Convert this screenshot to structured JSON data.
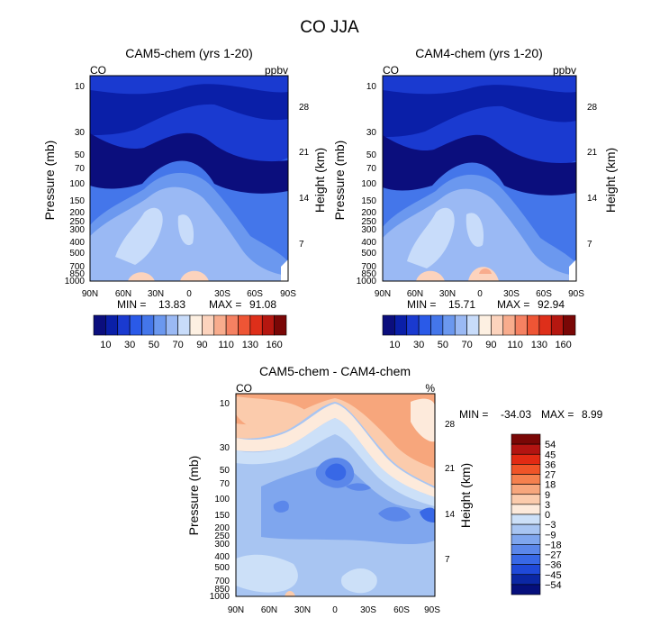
{
  "figure_title": "CO JJA",
  "chart_data": [
    {
      "type": "contour",
      "title": "CAM5-chem (yrs 1-20)",
      "variable": "CO",
      "units": "ppbv",
      "xlabel": "",
      "ylabel": "Pressure (mb)",
      "ylabel_right": "Height (km)",
      "x_ticks": [
        "90N",
        "60N",
        "30N",
        "0",
        "30S",
        "60S",
        "90S"
      ],
      "y_ticks": [
        "10",
        "30",
        "50",
        "70",
        "100",
        "150",
        "200",
        "250",
        "300",
        "400",
        "500",
        "700",
        "850",
        "1000"
      ],
      "y_ticks_right": [
        "28",
        "21",
        "14",
        "7"
      ],
      "min_label": "MIN =",
      "min_value": "13.83",
      "max_label": "MAX =",
      "max_value": "91.08",
      "colorbar_levels": [
        10,
        20,
        30,
        40,
        50,
        60,
        70,
        80,
        90,
        100,
        110,
        120,
        130,
        140,
        150,
        160
      ],
      "colorbar_labels": [
        "10",
        "30",
        "50",
        "70",
        "90",
        "110",
        "130",
        "160"
      ]
    },
    {
      "type": "contour",
      "title": "CAM4-chem (yrs 1-20)",
      "variable": "CO",
      "units": "ppbv",
      "xlabel": "",
      "ylabel": "Pressure (mb)",
      "ylabel_right": "Height (km)",
      "x_ticks": [
        "90N",
        "60N",
        "30N",
        "0",
        "30S",
        "60S",
        "90S"
      ],
      "y_ticks": [
        "10",
        "30",
        "50",
        "70",
        "100",
        "150",
        "200",
        "250",
        "300",
        "400",
        "500",
        "700",
        "850",
        "1000"
      ],
      "y_ticks_right": [
        "28",
        "21",
        "14",
        "7"
      ],
      "min_label": "MIN =",
      "min_value": "15.71",
      "max_label": "MAX =",
      "max_value": "92.94",
      "colorbar_levels": [
        10,
        20,
        30,
        40,
        50,
        60,
        70,
        80,
        90,
        100,
        110,
        120,
        130,
        140,
        150,
        160
      ],
      "colorbar_labels": [
        "10",
        "30",
        "50",
        "70",
        "90",
        "110",
        "130",
        "160"
      ]
    },
    {
      "type": "contour",
      "title": "CAM5-chem - CAM4-chem",
      "variable": "CO",
      "units": "%",
      "xlabel": "",
      "ylabel": "Pressure (mb)",
      "ylabel_right": "Height (km)",
      "x_ticks": [
        "90N",
        "60N",
        "30N",
        "0",
        "30S",
        "60S",
        "90S"
      ],
      "y_ticks": [
        "10",
        "30",
        "50",
        "70",
        "100",
        "150",
        "200",
        "250",
        "300",
        "400",
        "500",
        "700",
        "850",
        "1000"
      ],
      "y_ticks_right": [
        "28",
        "21",
        "14",
        "7"
      ],
      "min_label": "MIN =",
      "min_value": "-34.03",
      "max_label": "MAX =",
      "max_value": "8.99",
      "colorbar_levels": [
        -54,
        -45,
        -36,
        -27,
        -18,
        -9,
        -3,
        0,
        3,
        9,
        18,
        27,
        36,
        45,
        54
      ],
      "colorbar_labels": [
        "54",
        "45",
        "36",
        "27",
        "18",
        "9",
        "3",
        "0",
        "−3",
        "−9",
        "−18",
        "−27",
        "−36",
        "−45",
        "−54"
      ]
    }
  ],
  "colors": {
    "abs_scale": [
      "#0b0e7d",
      "#0a1fa8",
      "#1a3ad0",
      "#2a5ae8",
      "#4476ea",
      "#6b98ef",
      "#9ab9f4",
      "#c8dcfa",
      "#fdf0e2",
      "#fcd3bd",
      "#f8ac8d",
      "#f58162",
      "#ee5535",
      "#de2f1a",
      "#b51710",
      "#7a0706"
    ],
    "diff_scale": [
      "#7a0706",
      "#b31411",
      "#e22a13",
      "#f05428",
      "#f5804e",
      "#f7a67c",
      "#fbcbac",
      "#fdeadb",
      "#cce0f8",
      "#a8c5f2",
      "#7fa6ee",
      "#5b87ea",
      "#3868e6",
      "#1f49d8",
      "#0b27a4",
      "#050f7c"
    ]
  }
}
